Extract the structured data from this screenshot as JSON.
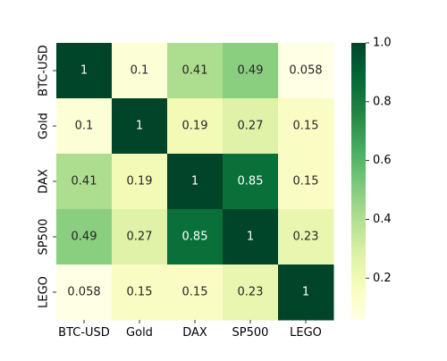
{
  "chart_data": {
    "type": "heatmap",
    "title": "",
    "xlabel": "",
    "ylabel": "",
    "x_categories": [
      "BTC-USD",
      "Gold",
      "DAX",
      "SP500",
      "LEGO"
    ],
    "y_categories": [
      "BTC-USD",
      "Gold",
      "DAX",
      "SP500",
      "LEGO"
    ],
    "values": [
      [
        1,
        0.1,
        0.41,
        0.49,
        0.058
      ],
      [
        0.1,
        1,
        0.19,
        0.27,
        0.15
      ],
      [
        0.41,
        0.19,
        1,
        0.85,
        0.15
      ],
      [
        0.49,
        0.27,
        0.85,
        1,
        0.23
      ],
      [
        0.058,
        0.15,
        0.15,
        0.23,
        1
      ]
    ],
    "value_labels": [
      [
        "1",
        "0.1",
        "0.41",
        "0.49",
        "0.058"
      ],
      [
        "0.1",
        "1",
        "0.19",
        "0.27",
        "0.15"
      ],
      [
        "0.41",
        "0.19",
        "1",
        "0.85",
        "0.15"
      ],
      [
        "0.49",
        "0.27",
        "0.85",
        "1",
        "0.23"
      ],
      [
        "0.058",
        "0.15",
        "0.15",
        "0.23",
        "1"
      ]
    ],
    "colormap": "YlGn",
    "vmin": 0.058,
    "vmax": 1.0,
    "colorbar": {
      "ticks": [
        0.2,
        0.4,
        0.6,
        0.8,
        1.0
      ],
      "tick_labels": [
        "0.2",
        "0.4",
        "0.6",
        "0.8",
        "1.0"
      ]
    },
    "grid": false,
    "colors": {
      "low": "#ffffe5",
      "high": "#004529",
      "annotation_dark_text": "#262626",
      "annotation_light_text": "#ffffff"
    }
  }
}
